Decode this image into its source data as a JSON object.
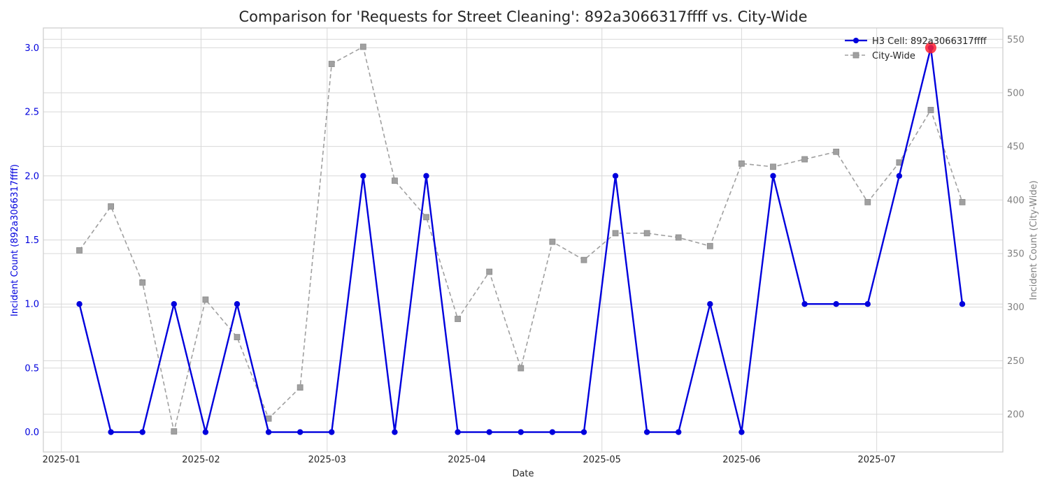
{
  "chart_data": {
    "type": "line",
    "title": "Comparison for 'Requests for Street Cleaning': 892a3066317ffff vs. City-Wide",
    "xlabel": "Date",
    "ylabel_left": "Incident Count (892a3066317ffff)",
    "ylabel_right": "Incident Count (City-Wide)",
    "ylim_left": [
      -0.155,
      3.155
    ],
    "ylim_right": [
      164.8,
      560.6
    ],
    "yticks_left": [
      "0.0",
      "0.5",
      "1.0",
      "1.5",
      "2.0",
      "2.5",
      "3.0"
    ],
    "yticks_right": [
      "200",
      "250",
      "300",
      "350",
      "400",
      "450",
      "500",
      "550"
    ],
    "xticks": [
      "2025-01",
      "2025-02",
      "2025-03",
      "2025-04",
      "2025-05",
      "2025-06",
      "2025-07"
    ],
    "xlim": [
      "2024-12-28",
      "2025-07-29"
    ],
    "dates": [
      "2025-01-05",
      "2025-01-12",
      "2025-01-19",
      "2025-01-26",
      "2025-02-02",
      "2025-02-09",
      "2025-02-16",
      "2025-02-23",
      "2025-03-02",
      "2025-03-09",
      "2025-03-16",
      "2025-03-23",
      "2025-03-30",
      "2025-04-06",
      "2025-04-13",
      "2025-04-20",
      "2025-04-27",
      "2025-05-04",
      "2025-05-11",
      "2025-05-18",
      "2025-05-25",
      "2025-06-01",
      "2025-06-08",
      "2025-06-15",
      "2025-06-22",
      "2025-06-29",
      "2025-07-06",
      "2025-07-13",
      "2025-07-20"
    ],
    "series": [
      {
        "name": "H3 Cell: 892a3066317ffff",
        "axis": "left",
        "color": "#0000dd",
        "marker": "circle",
        "style": "solid",
        "values": [
          1,
          0,
          0,
          1,
          0,
          1,
          0,
          0,
          0,
          2,
          0,
          2,
          0,
          0,
          0,
          0,
          0,
          2,
          0,
          0,
          1,
          0,
          2,
          1,
          1,
          1,
          2,
          3,
          1
        ]
      },
      {
        "name": "City-Wide",
        "axis": "right",
        "color": "#a0a0a0",
        "marker": "square",
        "style": "dashed",
        "values": [
          353,
          394,
          323,
          184,
          307,
          272,
          196,
          225,
          527,
          543,
          418,
          384,
          289,
          333,
          243,
          361,
          344,
          369,
          369,
          365,
          357,
          434,
          431,
          438,
          445,
          398,
          435,
          484,
          398
        ]
      }
    ],
    "highlight": {
      "series": 0,
      "index": 27,
      "color": "#ff2030"
    },
    "grid": true,
    "legend_position": "top-right"
  }
}
